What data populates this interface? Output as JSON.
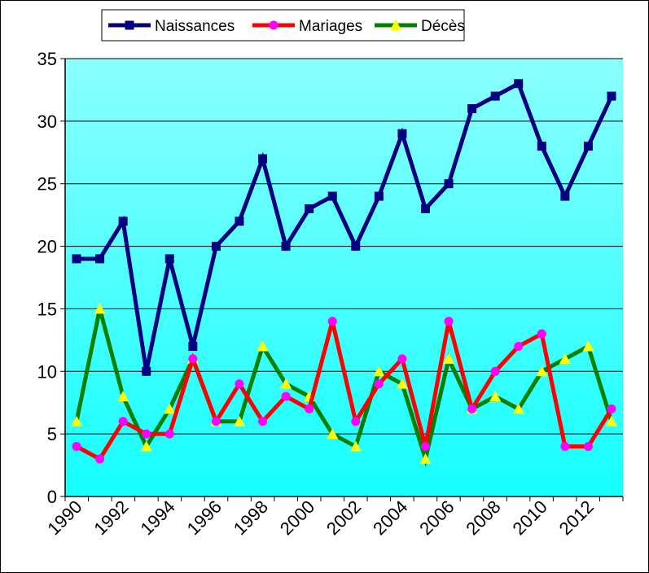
{
  "chart_data": {
    "type": "line",
    "title": "",
    "xlabel": "",
    "ylabel": "",
    "x": [
      1990,
      1991,
      1992,
      1993,
      1994,
      1995,
      1996,
      1997,
      1998,
      1999,
      2000,
      2001,
      2002,
      2003,
      2004,
      2005,
      2006,
      2007,
      2008,
      2009,
      2010,
      2011,
      2012,
      2013
    ],
    "x_tick_labels": [
      "1990",
      "1992",
      "1994",
      "1996",
      "1998",
      "2000",
      "2002",
      "2004",
      "2006",
      "2008",
      "2010",
      "2012"
    ],
    "y_tick_labels": [
      "0",
      "5",
      "10",
      "15",
      "20",
      "25",
      "30",
      "35"
    ],
    "ylim": [
      0,
      35
    ],
    "grid": true,
    "legend_position": "top-center",
    "series": [
      {
        "name": "Naissances",
        "color": "#000080",
        "marker": "square",
        "marker_color": "#000080",
        "values": [
          19,
          19,
          22,
          10,
          19,
          12,
          20,
          22,
          27,
          20,
          23,
          24,
          20,
          24,
          29,
          23,
          25,
          31,
          32,
          33,
          28,
          24,
          28,
          32
        ]
      },
      {
        "name": "Mariages",
        "color": "#ff0000",
        "marker": "circle",
        "marker_color": "#ff00ff",
        "values": [
          4,
          3,
          6,
          5,
          5,
          11,
          6,
          9,
          6,
          8,
          7,
          14,
          6,
          9,
          11,
          4,
          14,
          7,
          10,
          12,
          13,
          4,
          4,
          7
        ]
      },
      {
        "name": "Décès",
        "color": "#008000",
        "marker": "triangle",
        "marker_color": "#ffff00",
        "values": [
          6,
          15,
          8,
          4,
          7,
          11,
          6,
          6,
          12,
          9,
          8,
          5,
          4,
          10,
          9,
          3,
          11,
          7,
          8,
          7,
          10,
          11,
          12,
          6
        ]
      }
    ]
  }
}
